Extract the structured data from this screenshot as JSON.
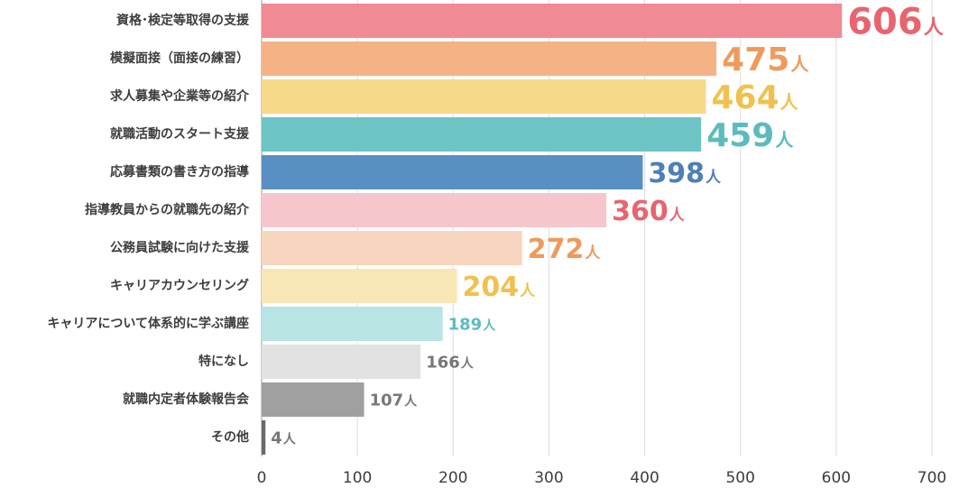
{
  "chart_data": {
    "type": "bar",
    "orientation": "horizontal",
    "categories": [
      "資格･検定等取得の支援",
      "模擬面接（面接の練習）",
      "求人募集や企業等の紹介",
      "就職活動のスタート支援",
      "応募書類の書き方の指導",
      "指導教員からの就職先の紹介",
      "公務員試験に向けた支援",
      "キャリアカウンセリング",
      "キャリアについて体系的に学ぶ講座",
      "特になし",
      "就職内定者体験報告会",
      "その他"
    ],
    "values": [
      606,
      475,
      464,
      459,
      398,
      360,
      272,
      204,
      189,
      166,
      107,
      4
    ],
    "value_unit": "人",
    "bar_colors": [
      "#f08a94",
      "#f5b385",
      "#f7d98a",
      "#6dc4c4",
      "#5a8fc3",
      "#f7c6cd",
      "#f8d5be",
      "#f8e6b6",
      "#b9e4e4",
      "#e2e2e2",
      "#a0a0a0",
      "#6a6a6a"
    ],
    "label_colors": [
      "#e8646f",
      "#ef9a5a",
      "#f0c14f",
      "#5cbcbd",
      "#4d7fb8",
      "#e8646f",
      "#ef9a5a",
      "#f0c14f",
      "#5cbcbd",
      "#777777",
      "#777777",
      "#777777"
    ],
    "xlim": [
      0,
      700
    ],
    "xticks": [
      "0",
      "100",
      "200",
      "300",
      "400",
      "500",
      "600",
      "700"
    ],
    "grid": true,
    "title": "",
    "xlabel": "",
    "ylabel": ""
  }
}
